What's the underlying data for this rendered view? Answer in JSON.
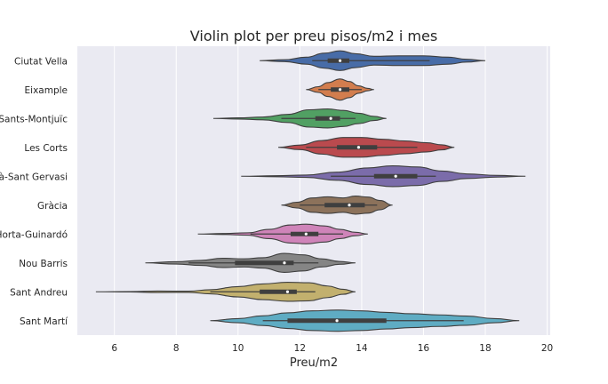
{
  "chart_data": {
    "type": "violin",
    "title": "Violin plot per preu pisos/m2 i mes",
    "xlabel": "Preu/m2",
    "ylabel": "",
    "xlim": [
      4.8,
      20.1
    ],
    "xticks": [
      6,
      8,
      10,
      12,
      14,
      16,
      18,
      20
    ],
    "grid": true,
    "orientation": "horizontal",
    "categories": [
      "Ciutat Vella",
      "Eixample",
      "Sants-Montjuïc",
      "Les Corts",
      "Sarrià-Sant Gervasi",
      "Gràcia",
      "Horta-Guinardó",
      "Nou Barris",
      "Sant Andreu",
      "Sant Martí"
    ],
    "colors": [
      "#4c72b0",
      "#dd8452",
      "#55a868",
      "#c44e52",
      "#8172b3",
      "#937860",
      "#da8bc3",
      "#8c8c8c",
      "#ccb974",
      "#64b5cd"
    ],
    "series": [
      {
        "category": "Ciutat Vella",
        "min": 10.7,
        "q1": 12.9,
        "median": 13.3,
        "q3": 13.6,
        "max": 18.0,
        "whisker_low": 12.4,
        "whisker_high": 16.2,
        "density": [
          [
            10.7,
            0.0
          ],
          [
            11.5,
            0.08
          ],
          [
            12.2,
            0.3
          ],
          [
            12.8,
            0.65
          ],
          [
            13.3,
            0.85
          ],
          [
            13.8,
            0.6
          ],
          [
            14.4,
            0.38
          ],
          [
            15.2,
            0.42
          ],
          [
            16.0,
            0.42
          ],
          [
            16.8,
            0.3
          ],
          [
            17.4,
            0.12
          ],
          [
            18.0,
            0.0
          ]
        ]
      },
      {
        "category": "Eixample",
        "min": 12.2,
        "q1": 13.0,
        "median": 13.3,
        "q3": 13.6,
        "max": 14.4,
        "whisker_low": 12.6,
        "whisker_high": 14.0,
        "density": [
          [
            12.2,
            0.0
          ],
          [
            12.6,
            0.25
          ],
          [
            12.9,
            0.6
          ],
          [
            13.3,
            0.92
          ],
          [
            13.6,
            0.7
          ],
          [
            13.9,
            0.32
          ],
          [
            14.2,
            0.1
          ],
          [
            14.4,
            0.0
          ]
        ]
      },
      {
        "category": "Sants-Montjuïc",
        "min": 9.2,
        "q1": 12.5,
        "median": 13.0,
        "q3": 13.3,
        "max": 14.8,
        "whisker_low": 11.4,
        "whisker_high": 13.8,
        "density": [
          [
            9.2,
            0.0
          ],
          [
            10.0,
            0.05
          ],
          [
            10.8,
            0.12
          ],
          [
            11.6,
            0.35
          ],
          [
            12.3,
            0.75
          ],
          [
            12.9,
            0.82
          ],
          [
            13.4,
            0.7
          ],
          [
            13.9,
            0.45
          ],
          [
            14.4,
            0.18
          ],
          [
            14.8,
            0.0
          ]
        ]
      },
      {
        "category": "Les Corts",
        "min": 11.3,
        "q1": 13.2,
        "median": 13.9,
        "q3": 14.5,
        "max": 17.0,
        "whisker_low": 12.2,
        "whisker_high": 15.8,
        "density": [
          [
            11.3,
            0.0
          ],
          [
            12.0,
            0.2
          ],
          [
            12.7,
            0.58
          ],
          [
            13.4,
            0.85
          ],
          [
            14.0,
            0.85
          ],
          [
            14.7,
            0.7
          ],
          [
            15.4,
            0.55
          ],
          [
            16.1,
            0.4
          ],
          [
            16.6,
            0.22
          ],
          [
            17.0,
            0.0
          ]
        ]
      },
      {
        "category": "Sarrià-Sant Gervasi",
        "min": 10.1,
        "q1": 14.4,
        "median": 15.1,
        "q3": 15.8,
        "max": 19.3,
        "whisker_low": 13.0,
        "whisker_high": 16.4,
        "density": [
          [
            10.1,
            0.0
          ],
          [
            11.2,
            0.04
          ],
          [
            12.2,
            0.1
          ],
          [
            13.2,
            0.35
          ],
          [
            14.2,
            0.72
          ],
          [
            15.0,
            0.9
          ],
          [
            15.8,
            0.8
          ],
          [
            16.6,
            0.45
          ],
          [
            17.4,
            0.2
          ],
          [
            18.4,
            0.07
          ],
          [
            19.3,
            0.0
          ]
        ]
      },
      {
        "category": "Gràcia",
        "min": 11.4,
        "q1": 12.8,
        "median": 13.6,
        "q3": 14.1,
        "max": 15.0,
        "whisker_low": 12.0,
        "whisker_high": 14.5,
        "density": [
          [
            11.4,
            0.0
          ],
          [
            11.9,
            0.25
          ],
          [
            12.4,
            0.62
          ],
          [
            12.9,
            0.72
          ],
          [
            13.4,
            0.62
          ],
          [
            13.8,
            0.78
          ],
          [
            14.2,
            0.7
          ],
          [
            14.6,
            0.4
          ],
          [
            15.0,
            0.0
          ]
        ]
      },
      {
        "category": "Horta-Guinardó",
        "min": 8.7,
        "q1": 11.7,
        "median": 12.2,
        "q3": 12.6,
        "max": 14.2,
        "whisker_low": 10.4,
        "whisker_high": 13.4,
        "density": [
          [
            8.7,
            0.0
          ],
          [
            9.5,
            0.04
          ],
          [
            10.3,
            0.1
          ],
          [
            11.0,
            0.4
          ],
          [
            11.7,
            0.78
          ],
          [
            12.2,
            0.85
          ],
          [
            12.8,
            0.7
          ],
          [
            13.3,
            0.4
          ],
          [
            13.8,
            0.15
          ],
          [
            14.2,
            0.0
          ]
        ]
      },
      {
        "category": "Nou Barris",
        "min": 7.0,
        "q1": 9.9,
        "median": 11.5,
        "q3": 11.8,
        "max": 13.8,
        "whisker_low": 8.4,
        "whisker_high": 12.6,
        "density": [
          [
            7.0,
            0.0
          ],
          [
            8.0,
            0.1
          ],
          [
            8.8,
            0.22
          ],
          [
            9.5,
            0.4
          ],
          [
            10.2,
            0.35
          ],
          [
            10.8,
            0.45
          ],
          [
            11.5,
            0.82
          ],
          [
            12.1,
            0.7
          ],
          [
            12.7,
            0.35
          ],
          [
            13.3,
            0.12
          ],
          [
            13.8,
            0.0
          ]
        ]
      },
      {
        "category": "Sant Andreu",
        "min": 5.4,
        "q1": 10.7,
        "median": 11.6,
        "q3": 11.9,
        "max": 13.8,
        "whisker_low": 9.1,
        "whisker_high": 12.5,
        "density": [
          [
            5.4,
            0.0
          ],
          [
            6.5,
            0.02
          ],
          [
            7.4,
            0.06
          ],
          [
            8.4,
            0.05
          ],
          [
            9.1,
            0.18
          ],
          [
            10.0,
            0.45
          ],
          [
            10.8,
            0.68
          ],
          [
            11.6,
            0.82
          ],
          [
            12.3,
            0.78
          ],
          [
            12.9,
            0.5
          ],
          [
            13.4,
            0.22
          ],
          [
            13.8,
            0.0
          ]
        ]
      },
      {
        "category": "Sant Martí",
        "min": 9.1,
        "q1": 11.6,
        "median": 13.2,
        "q3": 14.8,
        "max": 19.1,
        "whisker_low": 10.8,
        "whisker_high": 17.3,
        "density": [
          [
            9.1,
            0.0
          ],
          [
            10.0,
            0.18
          ],
          [
            10.8,
            0.42
          ],
          [
            11.6,
            0.68
          ],
          [
            12.4,
            0.85
          ],
          [
            13.2,
            0.92
          ],
          [
            14.0,
            0.85
          ],
          [
            14.8,
            0.72
          ],
          [
            15.6,
            0.6
          ],
          [
            16.5,
            0.5
          ],
          [
            17.4,
            0.4
          ],
          [
            18.3,
            0.18
          ],
          [
            19.1,
            0.0
          ]
        ]
      }
    ]
  }
}
